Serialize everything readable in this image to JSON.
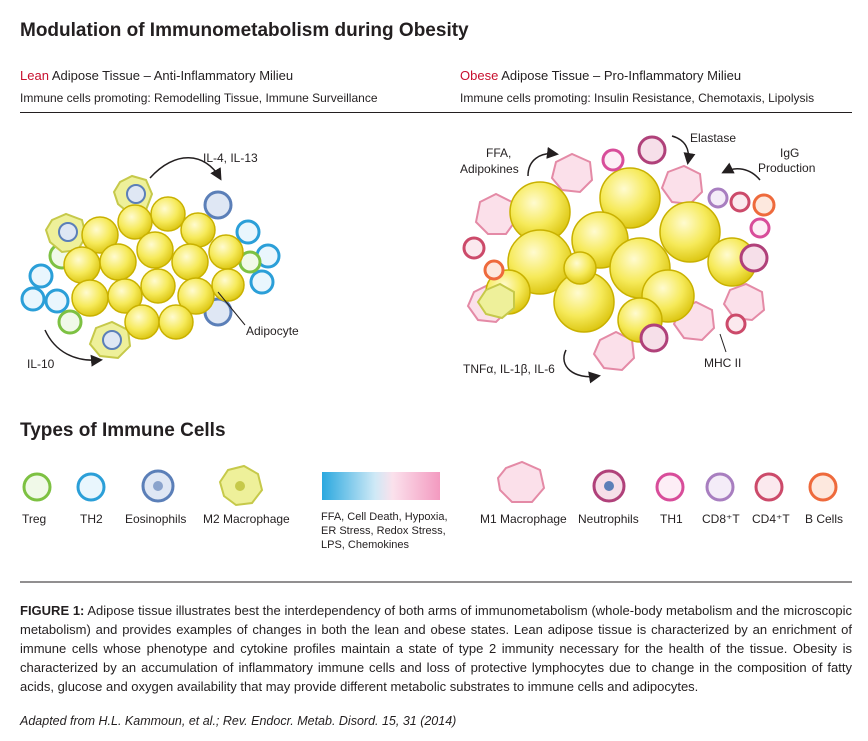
{
  "title": "Modulation of Immunometabolism during Obesity",
  "lean": {
    "heading_highlight": "Lean",
    "heading_rest": " Adipose Tissue – Anti-Inflammatory Milieu",
    "subheading": "Immune cells promoting: Remodelling Tissue, Immune Surveillance",
    "labels": {
      "il4_il13": "IL-4, IL-13",
      "adipocyte": "Adipocyte",
      "il10": "IL-10"
    }
  },
  "obese": {
    "heading_highlight": "Obese",
    "heading_rest": " Adipose Tissue – Pro-Inflammatory Milieu",
    "subheading": "Immune cells promoting: Insulin Resistance, Chemotaxis, Lipolysis",
    "labels": {
      "ffa": "FFA,",
      "adipokines": "Adipokines",
      "elastase": "Elastase",
      "igg": "IgG",
      "production": "Production",
      "tnf": "TNFα, IL-1β, IL-6",
      "mhc": "MHC II"
    }
  },
  "legend": {
    "title": "Types of Immune Cells",
    "cells": [
      {
        "key": "treg",
        "label": "Treg",
        "color": "#7dc142"
      },
      {
        "key": "th2",
        "label": "TH2",
        "color": "#2b9fd8"
      },
      {
        "key": "eos",
        "label": "Eosinophils",
        "color": "#5b7fb8"
      },
      {
        "key": "m2",
        "label": "M2 Macrophage",
        "color": "#c6c94a"
      },
      {
        "key": "m1",
        "label": "M1 Macrophage",
        "color": "#e48aa6"
      },
      {
        "key": "neu",
        "label": "Neutrophils",
        "color": "#b0417a"
      },
      {
        "key": "th1",
        "label": "TH1",
        "color": "#d84d9a"
      },
      {
        "key": "cd8",
        "label": "CD8⁺T",
        "color": "#a87ec0"
      },
      {
        "key": "cd4",
        "label": "CD4⁺T",
        "color": "#cc4a6a"
      },
      {
        "key": "bc",
        "label": "B Cells",
        "color": "#ee6a3c"
      }
    ],
    "gradient_text": [
      "FFA, Cell Death, Hypoxia,",
      "ER Stress, Redox Stress,",
      "LPS, Chemokines"
    ],
    "gradient_colors": [
      "#2aa8df",
      "#f39ac0"
    ]
  },
  "caption": {
    "label": "FIGURE 1:",
    "text": " Adipose tissue illustrates best the interdependency of both arms of immunometabolism (whole-body metabolism and the microscopic metabolism) and provides examples of changes in both the lean and obese states. Lean adipose tissue is characterized by an enrichment of immune cells whose phenotype and cytokine profiles maintain a state of type 2 immunity necessary for the health of the tissue. Obesity is characterized by an accumulation of inflammatory immune cells and loss of protective lymphocytes due to change in the composition of fatty acids, glucose and oxygen availability that may provide different metabolic substrates to immune cells and adipocytes."
  },
  "credit": "Adapted from H.L. Kammoun, et al.; Rev. Endocr. Metab. Disord. 15, 31 (2014)",
  "colors": {
    "adipocyte_fill": "#f6ea5a",
    "adipocyte_stroke": "#c9b100",
    "highlight": "#c8102e"
  }
}
